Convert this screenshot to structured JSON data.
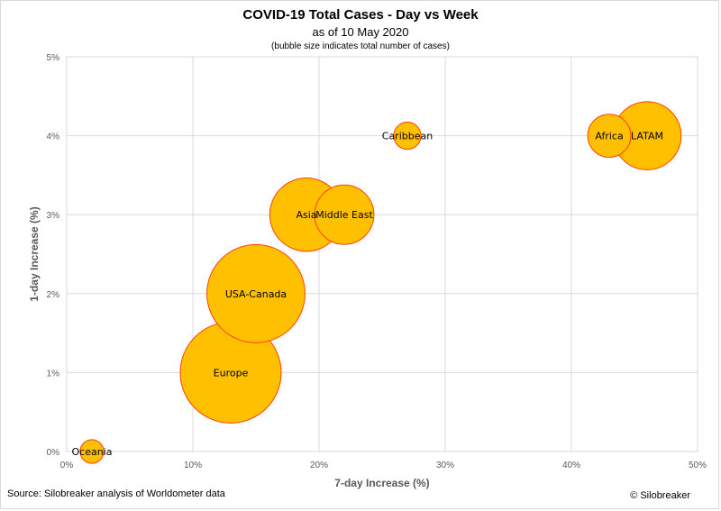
{
  "footer": {
    "source": "Source: Silobreaker analysis of Worldometer data",
    "credit": "© Silobreaker"
  },
  "chart_data": {
    "type": "bubble",
    "title": "COVID-19 Total Cases - Day vs Week",
    "subtitle": "as of 10 May 2020",
    "note": "(bubble size indicates total number of cases)",
    "xlabel": "7-day Increase (%)",
    "ylabel": "1-day Increase (%)",
    "xlim": [
      0,
      50
    ],
    "ylim": [
      0,
      5
    ],
    "x_ticks": [
      "0%",
      "10%",
      "20%",
      "30%",
      "40%",
      "50%"
    ],
    "y_ticks": [
      "0%",
      "1%",
      "2%",
      "3%",
      "4%",
      "5%"
    ],
    "grid": true,
    "bubble_color": "#FFC000",
    "bubble_stroke": "#FF4000",
    "points": [
      {
        "label": "Europe",
        "x": 13,
        "y": 1,
        "size": 55
      },
      {
        "label": "USA-Canada",
        "x": 15,
        "y": 2,
        "size": 52
      },
      {
        "label": "Asia",
        "x": 19,
        "y": 3,
        "size": 29
      },
      {
        "label": "Middle East",
        "x": 22,
        "y": 3,
        "size": 19
      },
      {
        "label": "LATAM",
        "x": 46,
        "y": 4,
        "size": 25
      },
      {
        "label": "Africa",
        "x": 43,
        "y": 4,
        "size": 10
      },
      {
        "label": "Caribbean",
        "x": 27,
        "y": 4,
        "size": 4
      },
      {
        "label": "Oceania",
        "x": 2,
        "y": 0,
        "size": 3
      }
    ]
  }
}
